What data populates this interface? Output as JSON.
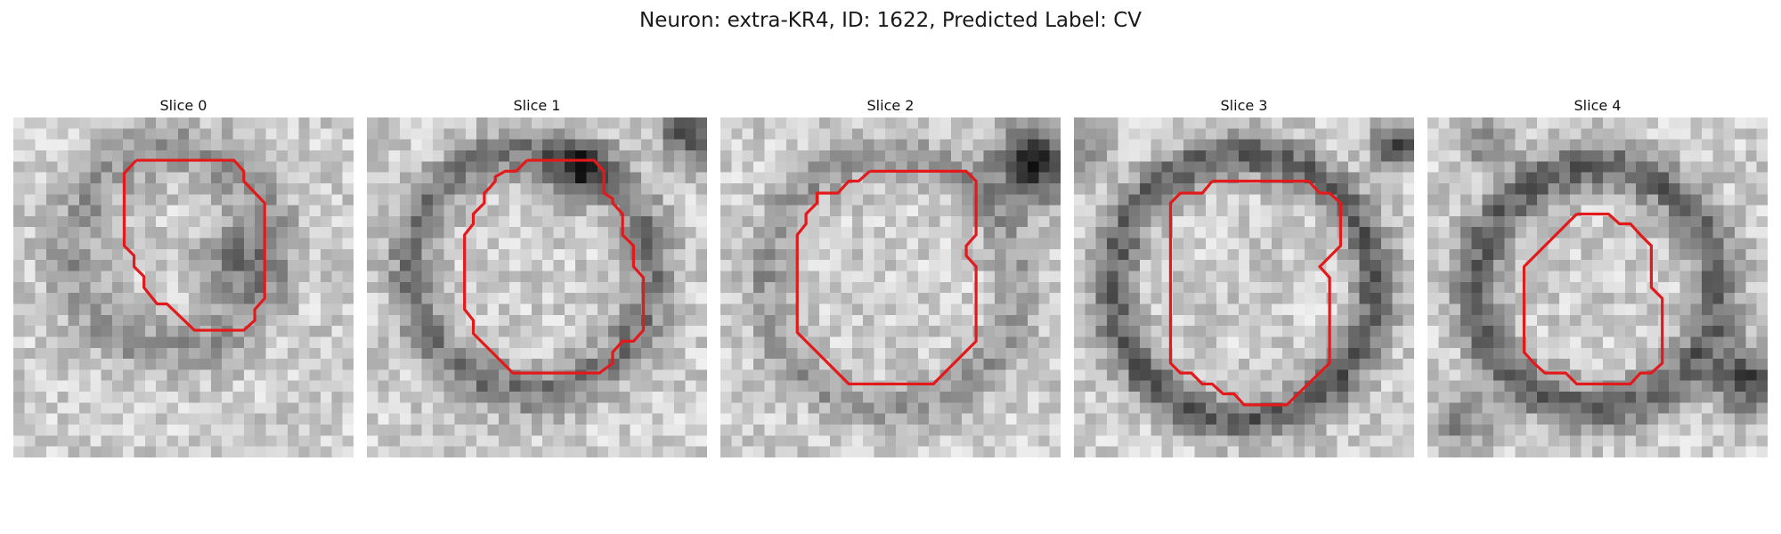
{
  "figure": {
    "title": "Neuron: extra-KR4, ID: 1622, Predicted Label: CV"
  },
  "colors": {
    "contour": "#e31a1c",
    "background": "#ffffff"
  },
  "panels": [
    {
      "title": "Slice 0"
    },
    {
      "title": "Slice 1"
    },
    {
      "title": "Slice 2"
    },
    {
      "title": "Slice 3"
    },
    {
      "title": "Slice 4"
    }
  ]
}
